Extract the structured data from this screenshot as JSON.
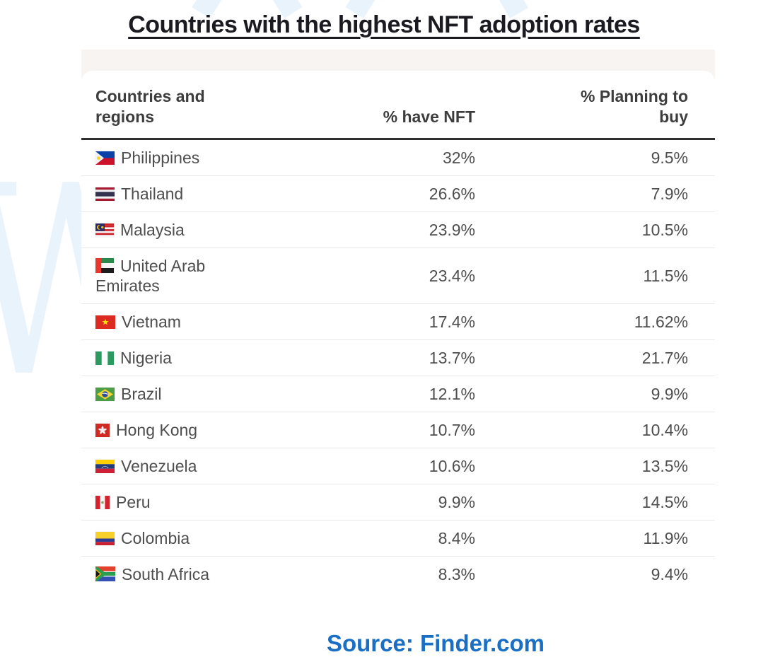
{
  "page": {
    "title": "Countries with the highest NFT adoption rates",
    "source_label": "Source: Finder.com"
  },
  "chart_data": {
    "type": "table",
    "title": "Countries with the highest NFT adoption rates",
    "columns": [
      "Countries and regions",
      "% have NFT",
      "% Planning to buy"
    ],
    "rows": [
      {
        "country": "Philippines",
        "flag": "philippines",
        "have_nft": "32%",
        "planning_to_buy": "9.5%"
      },
      {
        "country": "Thailand",
        "flag": "thailand",
        "have_nft": "26.6%",
        "planning_to_buy": "7.9%"
      },
      {
        "country": "Malaysia",
        "flag": "malaysia",
        "have_nft": "23.9%",
        "planning_to_buy": "10.5%"
      },
      {
        "country": "United Arab Emirates",
        "flag": "uae",
        "have_nft": "23.4%",
        "planning_to_buy": "11.5%"
      },
      {
        "country": "Vietnam",
        "flag": "vietnam",
        "have_nft": "17.4%",
        "planning_to_buy": "11.62%"
      },
      {
        "country": "Nigeria",
        "flag": "nigeria",
        "have_nft": "13.7%",
        "planning_to_buy": "21.7%"
      },
      {
        "country": "Brazil",
        "flag": "brazil",
        "have_nft": "12.1%",
        "planning_to_buy": "9.9%"
      },
      {
        "country": "Hong Kong",
        "flag": "hong-kong",
        "have_nft": "10.7%",
        "planning_to_buy": "10.4%"
      },
      {
        "country": "Venezuela",
        "flag": "venezuela",
        "have_nft": "10.6%",
        "planning_to_buy": "13.5%"
      },
      {
        "country": "Peru",
        "flag": "peru",
        "have_nft": "9.9%",
        "planning_to_buy": "14.5%"
      },
      {
        "country": "Colombia",
        "flag": "colombia",
        "have_nft": "8.4%",
        "planning_to_buy": "11.9%"
      },
      {
        "country": "South Africa",
        "flag": "south-africa",
        "have_nft": "8.3%",
        "planning_to_buy": "9.4%"
      }
    ],
    "source": "Source: Finder.com"
  },
  "colors": {
    "title_text": "#1a1a20",
    "header_text": "#3d3d3d",
    "body_text": "#4e4e4e",
    "header_rule": "#2f2f2f",
    "row_divider": "#e8e8e8",
    "band_background": "#f7f4f2",
    "card_background": "#ffffff",
    "source_link": "#1a6fc4",
    "watermark": "#e9f3fb"
  }
}
